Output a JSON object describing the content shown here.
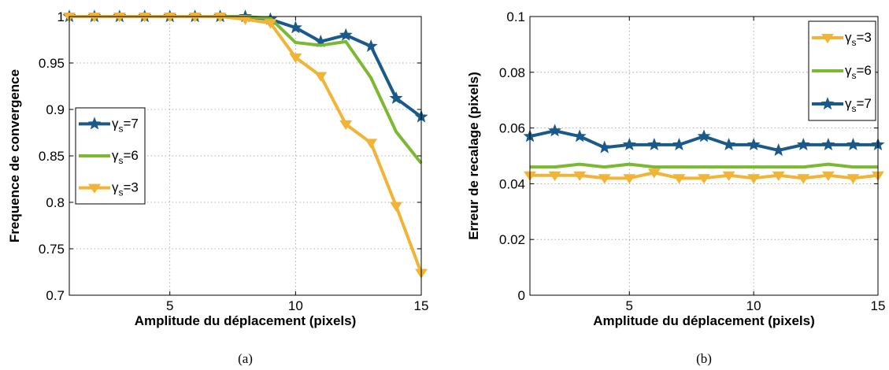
{
  "chart_data": [
    {
      "type": "line",
      "caption": "(a)",
      "xlabel": "Amplitude du déplacement (pixels)",
      "ylabel": "Frequence de convergence",
      "xlim": [
        1,
        15
      ],
      "ylim": [
        0.7,
        1.0
      ],
      "xticks": [
        5,
        10,
        15
      ],
      "yticks": [
        0.7,
        0.75,
        0.8,
        0.85,
        0.9,
        0.95,
        1
      ],
      "ytick_labels": [
        "0.7",
        "0.75",
        "0.8",
        "0.85",
        "0.9",
        "0.95",
        "1"
      ],
      "grid": true,
      "legend_position": "center-left",
      "x": [
        1,
        2,
        3,
        4,
        5,
        6,
        7,
        8,
        9,
        10,
        11,
        12,
        13,
        14,
        15
      ],
      "series": [
        {
          "name": "γs=7",
          "name_base": "γ",
          "name_sub": "s",
          "name_rest": "=7",
          "color": "#1a5a8a",
          "marker": "star",
          "values": [
            1,
            1,
            1,
            1,
            1,
            1,
            1,
            1,
            0.997,
            0.988,
            0.973,
            0.98,
            0.968,
            0.912,
            0.892
          ]
        },
        {
          "name": "γs=6",
          "name_base": "γ",
          "name_sub": "s",
          "name_rest": "=6",
          "color": "#7cb832",
          "marker": "none",
          "values": [
            1,
            1,
            1,
            1,
            1,
            1,
            1,
            1,
            0.998,
            0.972,
            0.969,
            0.973,
            0.934,
            0.876,
            0.842
          ]
        },
        {
          "name": "γs=3",
          "name_base": "γ",
          "name_sub": "s",
          "name_rest": "=3",
          "color": "#f2b437",
          "marker": "triangle-down",
          "values": [
            1,
            1,
            1,
            1,
            1,
            1,
            1,
            0.997,
            0.993,
            0.956,
            0.936,
            0.884,
            0.864,
            0.796,
            0.724
          ]
        }
      ]
    },
    {
      "type": "line",
      "caption": "(b)",
      "xlabel": "Amplitude du déplacement (pixels)",
      "ylabel": "Erreur de recalage (pixels)",
      "xlim": [
        1,
        15
      ],
      "ylim": [
        0,
        0.1
      ],
      "xticks": [
        5,
        10,
        15
      ],
      "yticks": [
        0,
        0.02,
        0.04,
        0.06,
        0.08,
        0.1
      ],
      "ytick_labels": [
        "0",
        "0.02",
        "0.04",
        "0.06",
        "0.08",
        "0.1"
      ],
      "grid": true,
      "legend_position": "top-right",
      "x": [
        1,
        2,
        3,
        4,
        5,
        6,
        7,
        8,
        9,
        10,
        11,
        12,
        13,
        14,
        15
      ],
      "series": [
        {
          "name": "γs=3",
          "name_base": "γ",
          "name_sub": "s",
          "name_rest": "=3",
          "color": "#f2b437",
          "marker": "triangle-down",
          "values": [
            0.043,
            0.043,
            0.043,
            0.042,
            0.042,
            0.044,
            0.042,
            0.042,
            0.043,
            0.042,
            0.043,
            0.042,
            0.043,
            0.042,
            0.043
          ]
        },
        {
          "name": "γs=6",
          "name_base": "γ",
          "name_sub": "s",
          "name_rest": "=6",
          "color": "#7cb832",
          "marker": "none",
          "values": [
            0.046,
            0.046,
            0.047,
            0.046,
            0.047,
            0.046,
            0.046,
            0.046,
            0.046,
            0.046,
            0.046,
            0.046,
            0.047,
            0.046,
            0.046
          ]
        },
        {
          "name": "γs=7",
          "name_base": "γ",
          "name_sub": "s",
          "name_rest": "=7",
          "color": "#1a5a8a",
          "marker": "star",
          "values": [
            0.057,
            0.059,
            0.057,
            0.053,
            0.054,
            0.054,
            0.054,
            0.057,
            0.054,
            0.054,
            0.052,
            0.054,
            0.054,
            0.054,
            0.054
          ]
        }
      ]
    }
  ]
}
